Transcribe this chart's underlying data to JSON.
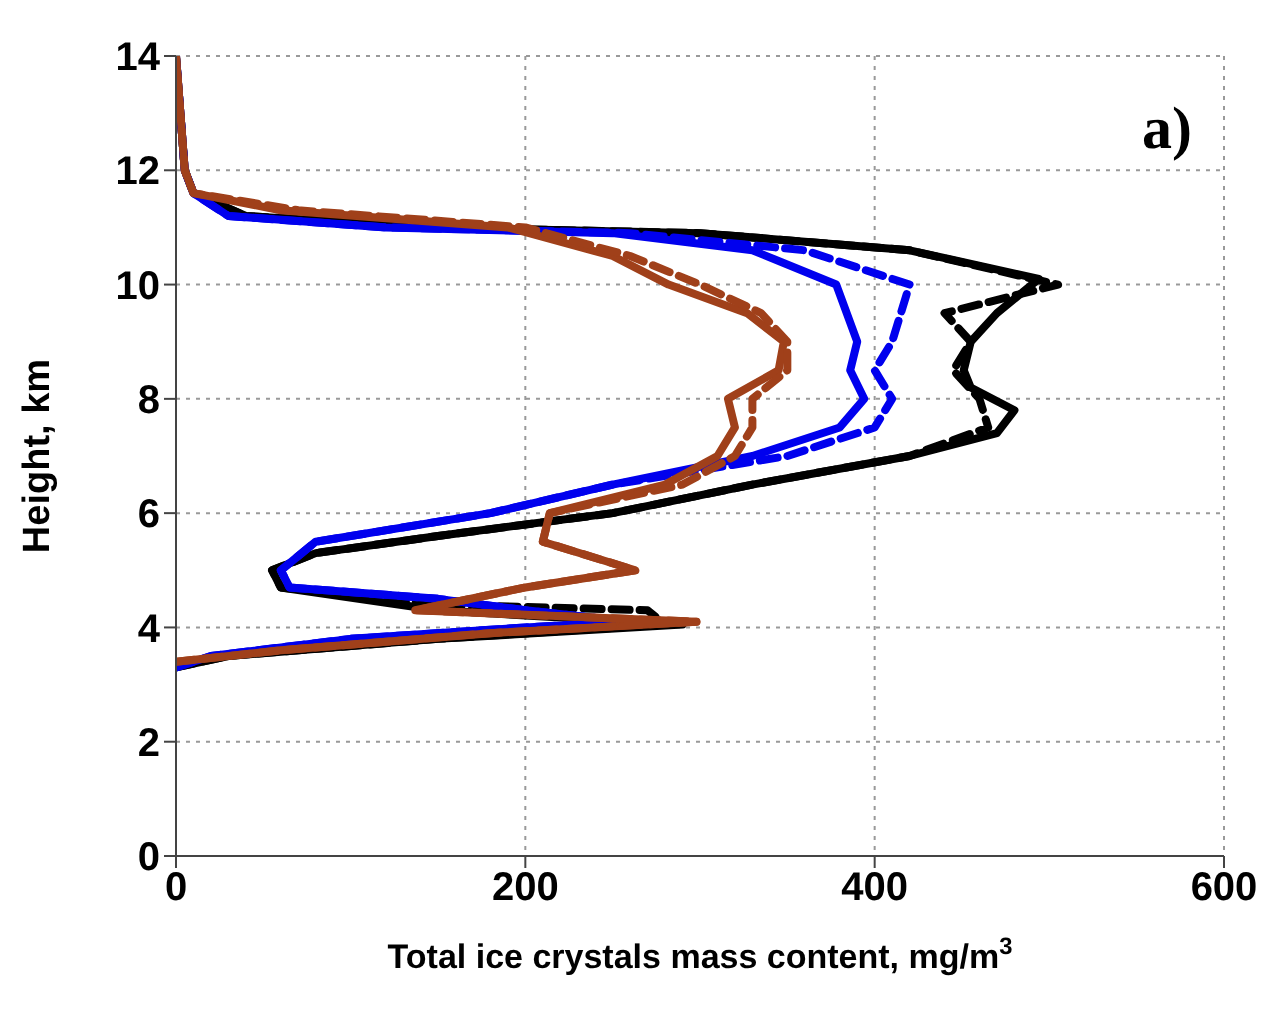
{
  "chart_data": {
    "type": "line",
    "xlabel": "Total ice crystals mass content, mg/m$^{3}$",
    "ylabel": "Height, km",
    "annotations": [
      "a)"
    ],
    "xlim": [
      0,
      600
    ],
    "xticks": [
      0,
      200,
      400,
      600
    ],
    "ylim": [
      0,
      14
    ],
    "yticks": [
      0,
      2,
      4,
      6,
      8,
      10,
      12,
      14
    ],
    "grid": true,
    "marker": "none",
    "series": [
      {
        "color": "#000000",
        "line_style": "solid",
        "x": [
          0,
          30,
          150,
          290,
          150,
          60,
          55,
          80,
          150,
          250,
          330,
          420,
          470,
          480,
          455,
          451,
          455,
          470,
          494,
          420,
          300,
          150,
          40,
          10,
          5,
          0
        ],
        "values": [
          3.3,
          3.5,
          3.8,
          4.05,
          4.3,
          4.7,
          5.0,
          5.3,
          5.6,
          6.0,
          6.5,
          7.0,
          7.4,
          7.8,
          8.2,
          8.5,
          9.0,
          9.5,
          10.1,
          10.6,
          10.9,
          11.0,
          11.2,
          11.6,
          12,
          14
        ]
      },
      {
        "color": "#000000",
        "line_style": "dashed",
        "x": [
          0,
          30,
          150,
          280,
          270,
          150,
          60,
          55,
          80,
          150,
          250,
          330,
          420,
          465,
          460,
          445,
          455,
          440,
          505,
          420,
          300,
          150,
          40,
          10,
          5,
          0
        ],
        "values": [
          3.3,
          3.5,
          3.8,
          4.05,
          4.3,
          4.4,
          4.7,
          5.0,
          5.3,
          5.6,
          6.0,
          6.5,
          7.0,
          7.5,
          8.0,
          8.5,
          9.0,
          9.5,
          10.0,
          10.6,
          10.9,
          11.0,
          11.2,
          11.6,
          12,
          14
        ]
      },
      {
        "color": "#0000ee",
        "line_style": "solid",
        "x": [
          0,
          20,
          100,
          200,
          260,
          200,
          150,
          65,
          60,
          80,
          180,
          250,
          330,
          380,
          394,
          386,
          390,
          378,
          330,
          250,
          120,
          30,
          10,
          5,
          0
        ],
        "values": [
          3.3,
          3.5,
          3.8,
          4.0,
          4.1,
          4.3,
          4.5,
          4.7,
          5.0,
          5.5,
          6.0,
          6.5,
          7.0,
          7.5,
          8.0,
          8.5,
          9.0,
          10.0,
          10.6,
          10.9,
          11.0,
          11.2,
          11.6,
          12,
          14
        ]
      },
      {
        "color": "#0000ee",
        "line_style": "dashed",
        "x": [
          0,
          20,
          100,
          200,
          260,
          200,
          150,
          65,
          60,
          80,
          180,
          250,
          350,
          400,
          410,
          400,
          410,
          420,
          360,
          260,
          120,
          30,
          10,
          5,
          0
        ],
        "values": [
          3.3,
          3.5,
          3.8,
          4.0,
          4.1,
          4.3,
          4.5,
          4.7,
          5.0,
          5.5,
          6.0,
          6.5,
          7.0,
          7.5,
          8.0,
          8.5,
          9.0,
          10.0,
          10.6,
          10.9,
          11.0,
          11.2,
          11.6,
          12,
          14
        ]
      },
      {
        "color": "#a0401a",
        "line_style": "solid",
        "x": [
          0,
          60,
          180,
          298,
          137,
          200,
          263,
          210,
          214,
          280,
          310,
          320,
          316,
          345,
          348,
          327,
          282,
          250,
          190,
          60,
          10,
          5,
          0
        ],
        "values": [
          3.4,
          3.6,
          3.9,
          4.1,
          4.3,
          4.7,
          5.0,
          5.5,
          6.0,
          6.5,
          7.0,
          7.5,
          8.0,
          8.5,
          9.0,
          9.5,
          10.0,
          10.5,
          11.0,
          11.3,
          11.6,
          12,
          14
        ]
      },
      {
        "color": "#a0401a",
        "line_style": "dashed",
        "x": [
          0,
          60,
          180,
          298,
          137,
          200,
          263,
          210,
          214,
          290,
          320,
          330,
          330,
          350,
          350,
          335,
          300,
          260,
          200,
          70,
          10,
          5,
          0
        ],
        "values": [
          3.4,
          3.6,
          3.9,
          4.1,
          4.3,
          4.7,
          5.0,
          5.5,
          6.0,
          6.5,
          7.0,
          7.5,
          8.0,
          8.5,
          9.0,
          9.5,
          10.0,
          10.5,
          11.0,
          11.3,
          11.6,
          12,
          14
        ]
      }
    ]
  }
}
